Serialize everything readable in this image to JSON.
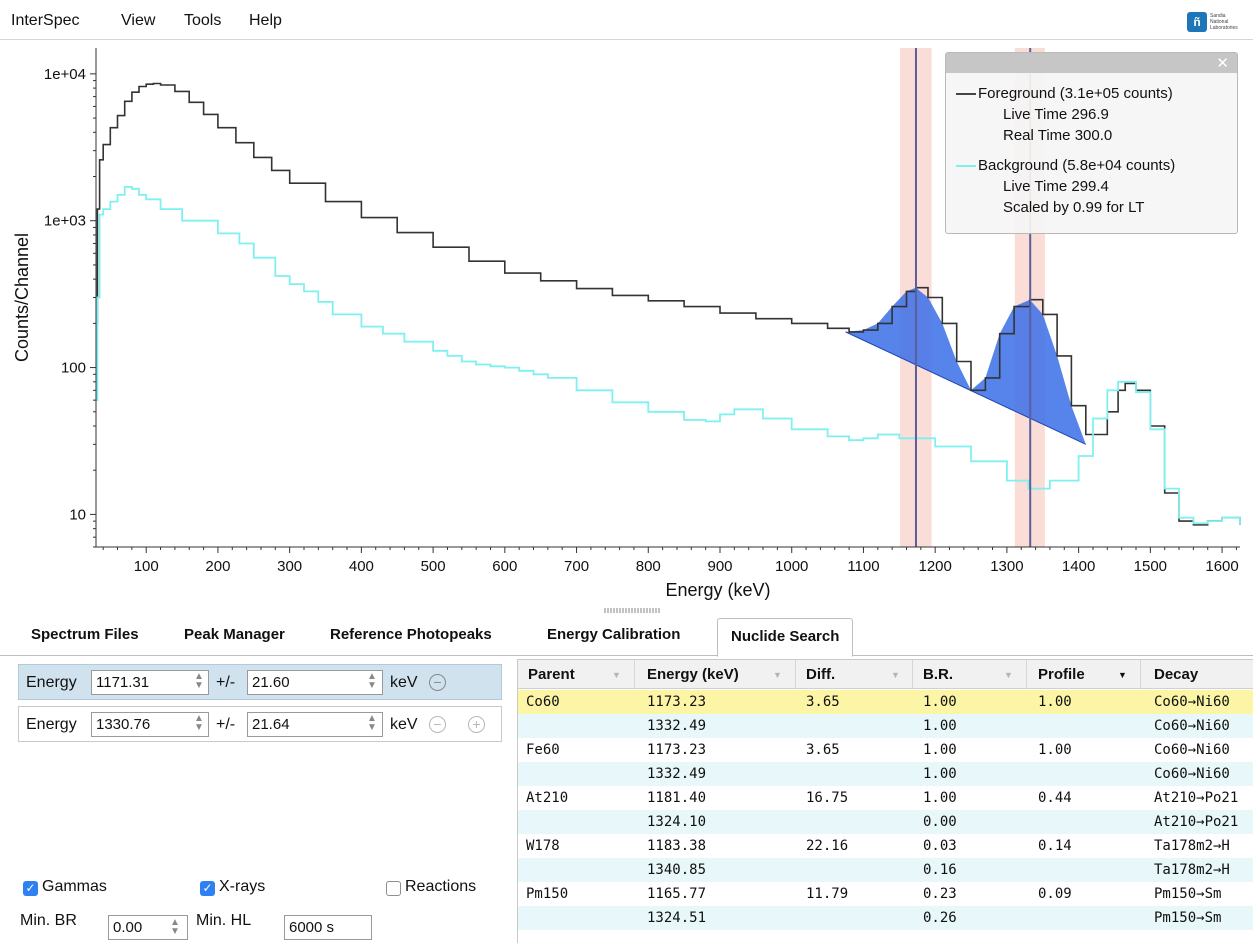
{
  "menu": {
    "items": [
      "InterSpec",
      "View",
      "Tools",
      "Help"
    ]
  },
  "logo": {
    "line1": "Sandia",
    "line2": "National",
    "line3": "Laboratories"
  },
  "chart_data": {
    "type": "line",
    "xlabel": "Energy (keV)",
    "ylabel": "Counts/Channel",
    "xlim": [
      30,
      1625
    ],
    "ylim": [
      6,
      15000
    ],
    "yscale": "log",
    "x_ticks": [
      100,
      200,
      300,
      400,
      500,
      600,
      700,
      800,
      900,
      1000,
      1100,
      1200,
      1300,
      1400,
      1500,
      1600
    ],
    "y_ticks": [
      {
        "value": 10000,
        "label": "1e+04"
      },
      {
        "value": 1000,
        "label": "1e+03"
      },
      {
        "value": 100,
        "label": "100"
      },
      {
        "value": 10,
        "label": "10"
      }
    ],
    "series": [
      {
        "name": "Foreground",
        "color": "#333333",
        "x": [
          30,
          32,
          35,
          40,
          50,
          60,
          70,
          80,
          90,
          100,
          110,
          120,
          140,
          160,
          180,
          200,
          225,
          250,
          275,
          300,
          350,
          400,
          450,
          500,
          550,
          600,
          650,
          700,
          750,
          800,
          850,
          900,
          950,
          1000,
          1050,
          1080,
          1100,
          1120,
          1140,
          1160,
          1173,
          1190,
          1210,
          1230,
          1250,
          1270,
          1290,
          1310,
          1332,
          1350,
          1370,
          1390,
          1410,
          1425,
          1440,
          1455,
          1465,
          1480,
          1500,
          1520,
          1540,
          1560,
          1580,
          1600,
          1625
        ],
        "y": [
          200,
          1200,
          2600,
          3300,
          4300,
          5200,
          6500,
          7500,
          8200,
          8500,
          8600,
          8400,
          7600,
          6400,
          5300,
          4300,
          3400,
          2700,
          2200,
          1800,
          1350,
          1050,
          830,
          660,
          530,
          440,
          390,
          345,
          310,
          285,
          260,
          235,
          215,
          200,
          185,
          175,
          180,
          200,
          260,
          330,
          350,
          300,
          200,
          110,
          70,
          85,
          170,
          260,
          290,
          230,
          120,
          55,
          35,
          35,
          50,
          70,
          78,
          70,
          40,
          14,
          9,
          8.5,
          9,
          9.5,
          8.5
        ]
      },
      {
        "name": "Background",
        "color": "#7ff0f0",
        "x": [
          30,
          32,
          35,
          40,
          50,
          60,
          70,
          80,
          90,
          100,
          120,
          150,
          200,
          230,
          250,
          280,
          300,
          320,
          340,
          360,
          400,
          430,
          460,
          500,
          520,
          540,
          560,
          580,
          600,
          620,
          640,
          660,
          700,
          750,
          800,
          850,
          880,
          900,
          920,
          960,
          1000,
          1050,
          1080,
          1100,
          1120,
          1150,
          1200,
          1250,
          1300,
          1330,
          1360,
          1400,
          1420,
          1440,
          1455,
          1465,
          1480,
          1500,
          1520,
          1540,
          1560,
          1580,
          1600,
          1625
        ],
        "y": [
          60,
          300,
          1100,
          1200,
          1350,
          1500,
          1700,
          1650,
          1500,
          1400,
          1200,
          1000,
          820,
          700,
          560,
          420,
          370,
          330,
          280,
          230,
          190,
          170,
          150,
          130,
          120,
          110,
          105,
          102,
          100,
          95,
          90,
          85,
          70,
          58,
          50,
          44,
          43,
          48,
          52,
          45,
          38,
          34,
          32,
          33,
          35,
          33,
          29,
          23,
          17,
          15,
          17,
          25,
          45,
          70,
          80,
          80,
          68,
          38,
          15,
          9.5,
          8.7,
          9,
          9.5,
          8.5
        ]
      }
    ],
    "peaks": [
      {
        "energy": 1173.23,
        "window": [
          1151,
          1195
        ]
      },
      {
        "energy": 1332.49,
        "window": [
          1311,
          1353
        ]
      }
    ],
    "peak_fill": {
      "x": [
        1075,
        1100,
        1120,
        1140,
        1160,
        1173,
        1190,
        1210,
        1230,
        1250,
        1270,
        1290,
        1310,
        1332,
        1350,
        1370,
        1390,
        1410
      ],
      "y": [
        175,
        180,
        200,
        260,
        330,
        350,
        300,
        200,
        110,
        70,
        85,
        170,
        260,
        290,
        230,
        120,
        55,
        30
      ]
    },
    "continuum": {
      "x": [
        1075,
        1410
      ],
      "y": [
        175,
        30
      ]
    }
  },
  "legend": {
    "close": "✕",
    "foreground": "Foreground (3.1e+05 counts)",
    "fg_live": "Live Time 296.9",
    "fg_real": "Real Time 300.0",
    "background": "Background (5.8e+04 counts)",
    "bg_live": "Live Time 299.4",
    "bg_scale": "Scaled by 0.99 for LT",
    "fg_color": "#444444",
    "bg_color": "#7ff0f0"
  },
  "tabs": [
    "Spectrum Files",
    "Peak Manager",
    "Reference Photopeaks",
    "Energy Calibration",
    "Nuclide Search"
  ],
  "search": {
    "energy_label": "Energy",
    "pm_label": "+/-",
    "unit": "keV",
    "rows": [
      {
        "energy": "1171.31",
        "tolerance": "21.60"
      },
      {
        "energy": "1330.76",
        "tolerance": "21.64"
      }
    ],
    "options": {
      "gammas": "Gammas",
      "xrays": "X-rays",
      "reactions": "Reactions",
      "min_br_label": "Min. BR",
      "min_br": "0.00",
      "min_hl_label": "Min. HL",
      "min_hl": "6000 s"
    }
  },
  "table": {
    "headers": [
      "Parent",
      "Energy (keV)",
      "Diff.",
      "B.R.",
      "Profile",
      "Decay"
    ],
    "rows": [
      [
        "Co60",
        "1173.23",
        "3.65",
        "1.00",
        "1.00",
        "Co60→Ni60"
      ],
      [
        "",
        "1332.49",
        "",
        "1.00",
        "",
        "Co60→Ni60"
      ],
      [
        "Fe60",
        "1173.23",
        "3.65",
        "1.00",
        "1.00",
        "Co60→Ni60"
      ],
      [
        "",
        "1332.49",
        "",
        "1.00",
        "",
        "Co60→Ni60"
      ],
      [
        "At210",
        "1181.40",
        "16.75",
        "1.00",
        "0.44",
        "At210→Po21"
      ],
      [
        "",
        "1324.10",
        "",
        "0.00",
        "",
        "At210→Po21"
      ],
      [
        "W178",
        "1183.38",
        "22.16",
        "0.03",
        "0.14",
        "Ta178m2→H"
      ],
      [
        "",
        "1340.85",
        "",
        "0.16",
        "",
        "Ta178m2→H"
      ],
      [
        "Pm150",
        "1165.77",
        "11.79",
        "0.23",
        "0.09",
        "Pm150→Sm"
      ],
      [
        "",
        "1324.51",
        "",
        "0.26",
        "",
        "Pm150→Sm"
      ]
    ]
  }
}
